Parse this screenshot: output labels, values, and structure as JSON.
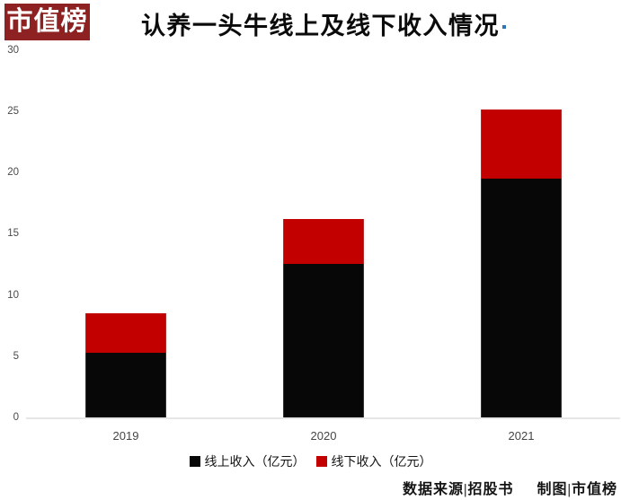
{
  "logo": {
    "text": "市值榜",
    "bg_color": "#8E2222",
    "text_color": "#FFFFFF"
  },
  "header": {
    "title": "认养一头牛线上及线下收入情况"
  },
  "footer": {
    "source": "数据来源|招股书",
    "credit": "制图|市值榜"
  },
  "colors": {
    "online_black": "#070707",
    "offline_red": "#C30000",
    "axis_line": "#E6E6E6",
    "logo_red": "#8E2222",
    "marker_blue": "#2E74B5"
  },
  "chart_data": {
    "type": "bar",
    "stacked": true,
    "title": "认养一头牛线上及线下收入情况",
    "categories": [
      "2019",
      "2020",
      "2021"
    ],
    "series": [
      {
        "name": "线上收入（亿元）",
        "color": "#070707",
        "values": [
          5.3,
          12.5,
          19.5
        ]
      },
      {
        "name": "线下收入（亿元）",
        "color": "#C30000",
        "values": [
          3.2,
          3.7,
          5.6
        ]
      }
    ],
    "totals": [
      8.5,
      16.2,
      25.1
    ],
    "xlabel": "",
    "ylabel": "",
    "ylim": [
      0,
      30
    ],
    "yticks": [
      0,
      5,
      10,
      15,
      20,
      25,
      30
    ],
    "grid": false,
    "legend_position": "bottom",
    "source_note": "数据来源|招股书",
    "credit_note": "制图|市值榜"
  }
}
